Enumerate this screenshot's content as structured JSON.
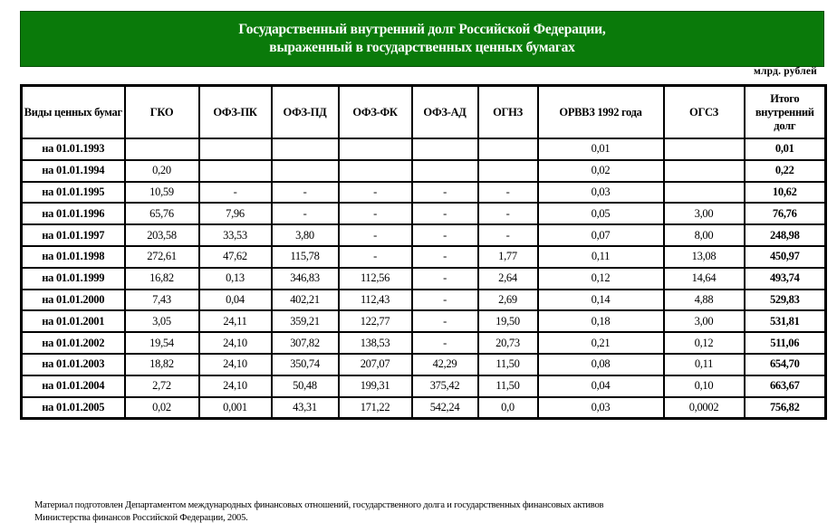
{
  "title": {
    "line1": "Государственный внутренний долг Российской Федерации,",
    "line2": "выраженный в государственных ценных бумагах"
  },
  "unit": "млрд.  рублей",
  "colors": {
    "banner": "#0a7a0a",
    "banner_text": "#ffffff"
  },
  "table": {
    "headers": [
      "Виды ценных бумаг",
      "ГКО",
      "ОФЗ-ПК",
      "ОФЗ-ПД",
      "ОФЗ-ФК",
      "ОФЗ-АД",
      "ОГНЗ",
      "ОРВВЗ 1992 года",
      "ОГСЗ",
      "Итого внутренний долг"
    ],
    "rows": [
      [
        "на 01.01.1993",
        "",
        "",
        "",
        "",
        "",
        "",
        "0,01",
        "",
        "0,01"
      ],
      [
        "на 01.01.1994",
        "0,20",
        "",
        "",
        "",
        "",
        "",
        "0,02",
        "",
        "0,22"
      ],
      [
        "на 01.01.1995",
        "10,59",
        "-",
        "-",
        "-",
        "-",
        "-",
        "0,03",
        "",
        "10,62"
      ],
      [
        "на 01.01.1996",
        "65,76",
        "7,96",
        "-",
        "-",
        "-",
        "-",
        "0,05",
        "3,00",
        "76,76"
      ],
      [
        "на 01.01.1997",
        "203,58",
        "33,53",
        "3,80",
        "-",
        "-",
        "-",
        "0,07",
        "8,00",
        "248,98"
      ],
      [
        "на 01.01.1998",
        "272,61",
        "47,62",
        "115,78",
        "-",
        "-",
        "1,77",
        "0,11",
        "13,08",
        "450,97"
      ],
      [
        "на 01.01.1999",
        "16,82",
        "0,13",
        "346,83",
        "112,56",
        "-",
        "2,64",
        "0,12",
        "14,64",
        "493,74"
      ],
      [
        "на 01.01.2000",
        "7,43",
        "0,04",
        "402,21",
        "112,43",
        "-",
        "2,69",
        "0,14",
        "4,88",
        "529,83"
      ],
      [
        "на 01.01.2001",
        "3,05",
        "24,11",
        "359,21",
        "122,77",
        "-",
        "19,50",
        "0,18",
        "3,00",
        "531,81"
      ],
      [
        "на 01.01.2002",
        "19,54",
        "24,10",
        "307,82",
        "138,53",
        "-",
        "20,73",
        "0,21",
        "0,12",
        "511,06"
      ],
      [
        "на 01.01.2003",
        "18,82",
        "24,10",
        "350,74",
        "207,07",
        "42,29",
        "11,50",
        "0,08",
        "0,11",
        "654,70"
      ],
      [
        "на 01.01.2004",
        "2,72",
        "24,10",
        "50,48",
        "199,31",
        "375,42",
        "11,50",
        "0,04",
        "0,10",
        "663,67"
      ],
      [
        "на 01.01.2005",
        "0,02",
        "0,001",
        "43,31",
        "171,22",
        "542,24",
        "0,0",
        "0,03",
        "0,0002",
        "756,82"
      ]
    ]
  },
  "footer": {
    "line1": "Материал подготовлен Департаментом международных финансовых отношений, государственного долга и государственных финансовых активов",
    "line2": "Министерства финансов Российской Федерации, 2005."
  }
}
